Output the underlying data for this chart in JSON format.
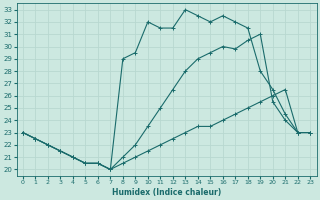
{
  "xlabel": "Humidex (Indice chaleur)",
  "ylabel": "",
  "xlim": [
    -0.5,
    23.5
  ],
  "ylim": [
    19.5,
    33.5
  ],
  "xticks": [
    0,
    1,
    2,
    3,
    4,
    5,
    6,
    7,
    8,
    9,
    10,
    11,
    12,
    13,
    14,
    15,
    16,
    17,
    18,
    19,
    20,
    21,
    22,
    23
  ],
  "yticks": [
    20,
    21,
    22,
    23,
    24,
    25,
    26,
    27,
    28,
    29,
    30,
    31,
    32,
    33
  ],
  "bg_color": "#cce8e0",
  "line_color": "#1a6b6b",
  "grid_color": "#b8d8d0",
  "line1_x": [
    0,
    1,
    2,
    3,
    4,
    5,
    6,
    7,
    8,
    9,
    10,
    11,
    12,
    13,
    14,
    15,
    16,
    17,
    18,
    19,
    20,
    21,
    22,
    23
  ],
  "line1_y": [
    23.0,
    22.5,
    22.0,
    21.5,
    21.0,
    20.5,
    20.5,
    20.0,
    29.0,
    29.5,
    32.0,
    31.5,
    31.5,
    33.0,
    32.5,
    32.0,
    32.5,
    32.0,
    31.5,
    28.0,
    26.5,
    24.5,
    23.0,
    23.0
  ],
  "line2_x": [
    0,
    1,
    2,
    3,
    4,
    5,
    6,
    7,
    8,
    9,
    10,
    11,
    12,
    13,
    14,
    15,
    16,
    17,
    18,
    19,
    20,
    21,
    22,
    23
  ],
  "line2_y": [
    23.0,
    22.5,
    22.0,
    21.5,
    21.0,
    20.5,
    20.5,
    20.0,
    21.0,
    22.0,
    23.5,
    25.0,
    26.5,
    28.0,
    29.0,
    29.5,
    30.0,
    29.8,
    30.5,
    31.0,
    25.5,
    24.0,
    23.0,
    23.0
  ],
  "line3_x": [
    0,
    1,
    2,
    3,
    4,
    5,
    6,
    7,
    8,
    9,
    10,
    11,
    12,
    13,
    14,
    15,
    16,
    17,
    18,
    19,
    20,
    21,
    22,
    23
  ],
  "line3_y": [
    23.0,
    22.5,
    22.0,
    21.5,
    21.0,
    20.5,
    20.5,
    20.0,
    20.5,
    21.0,
    21.5,
    22.0,
    22.5,
    23.0,
    23.5,
    23.5,
    24.0,
    24.5,
    25.0,
    25.5,
    26.0,
    26.5,
    23.0,
    23.0
  ]
}
